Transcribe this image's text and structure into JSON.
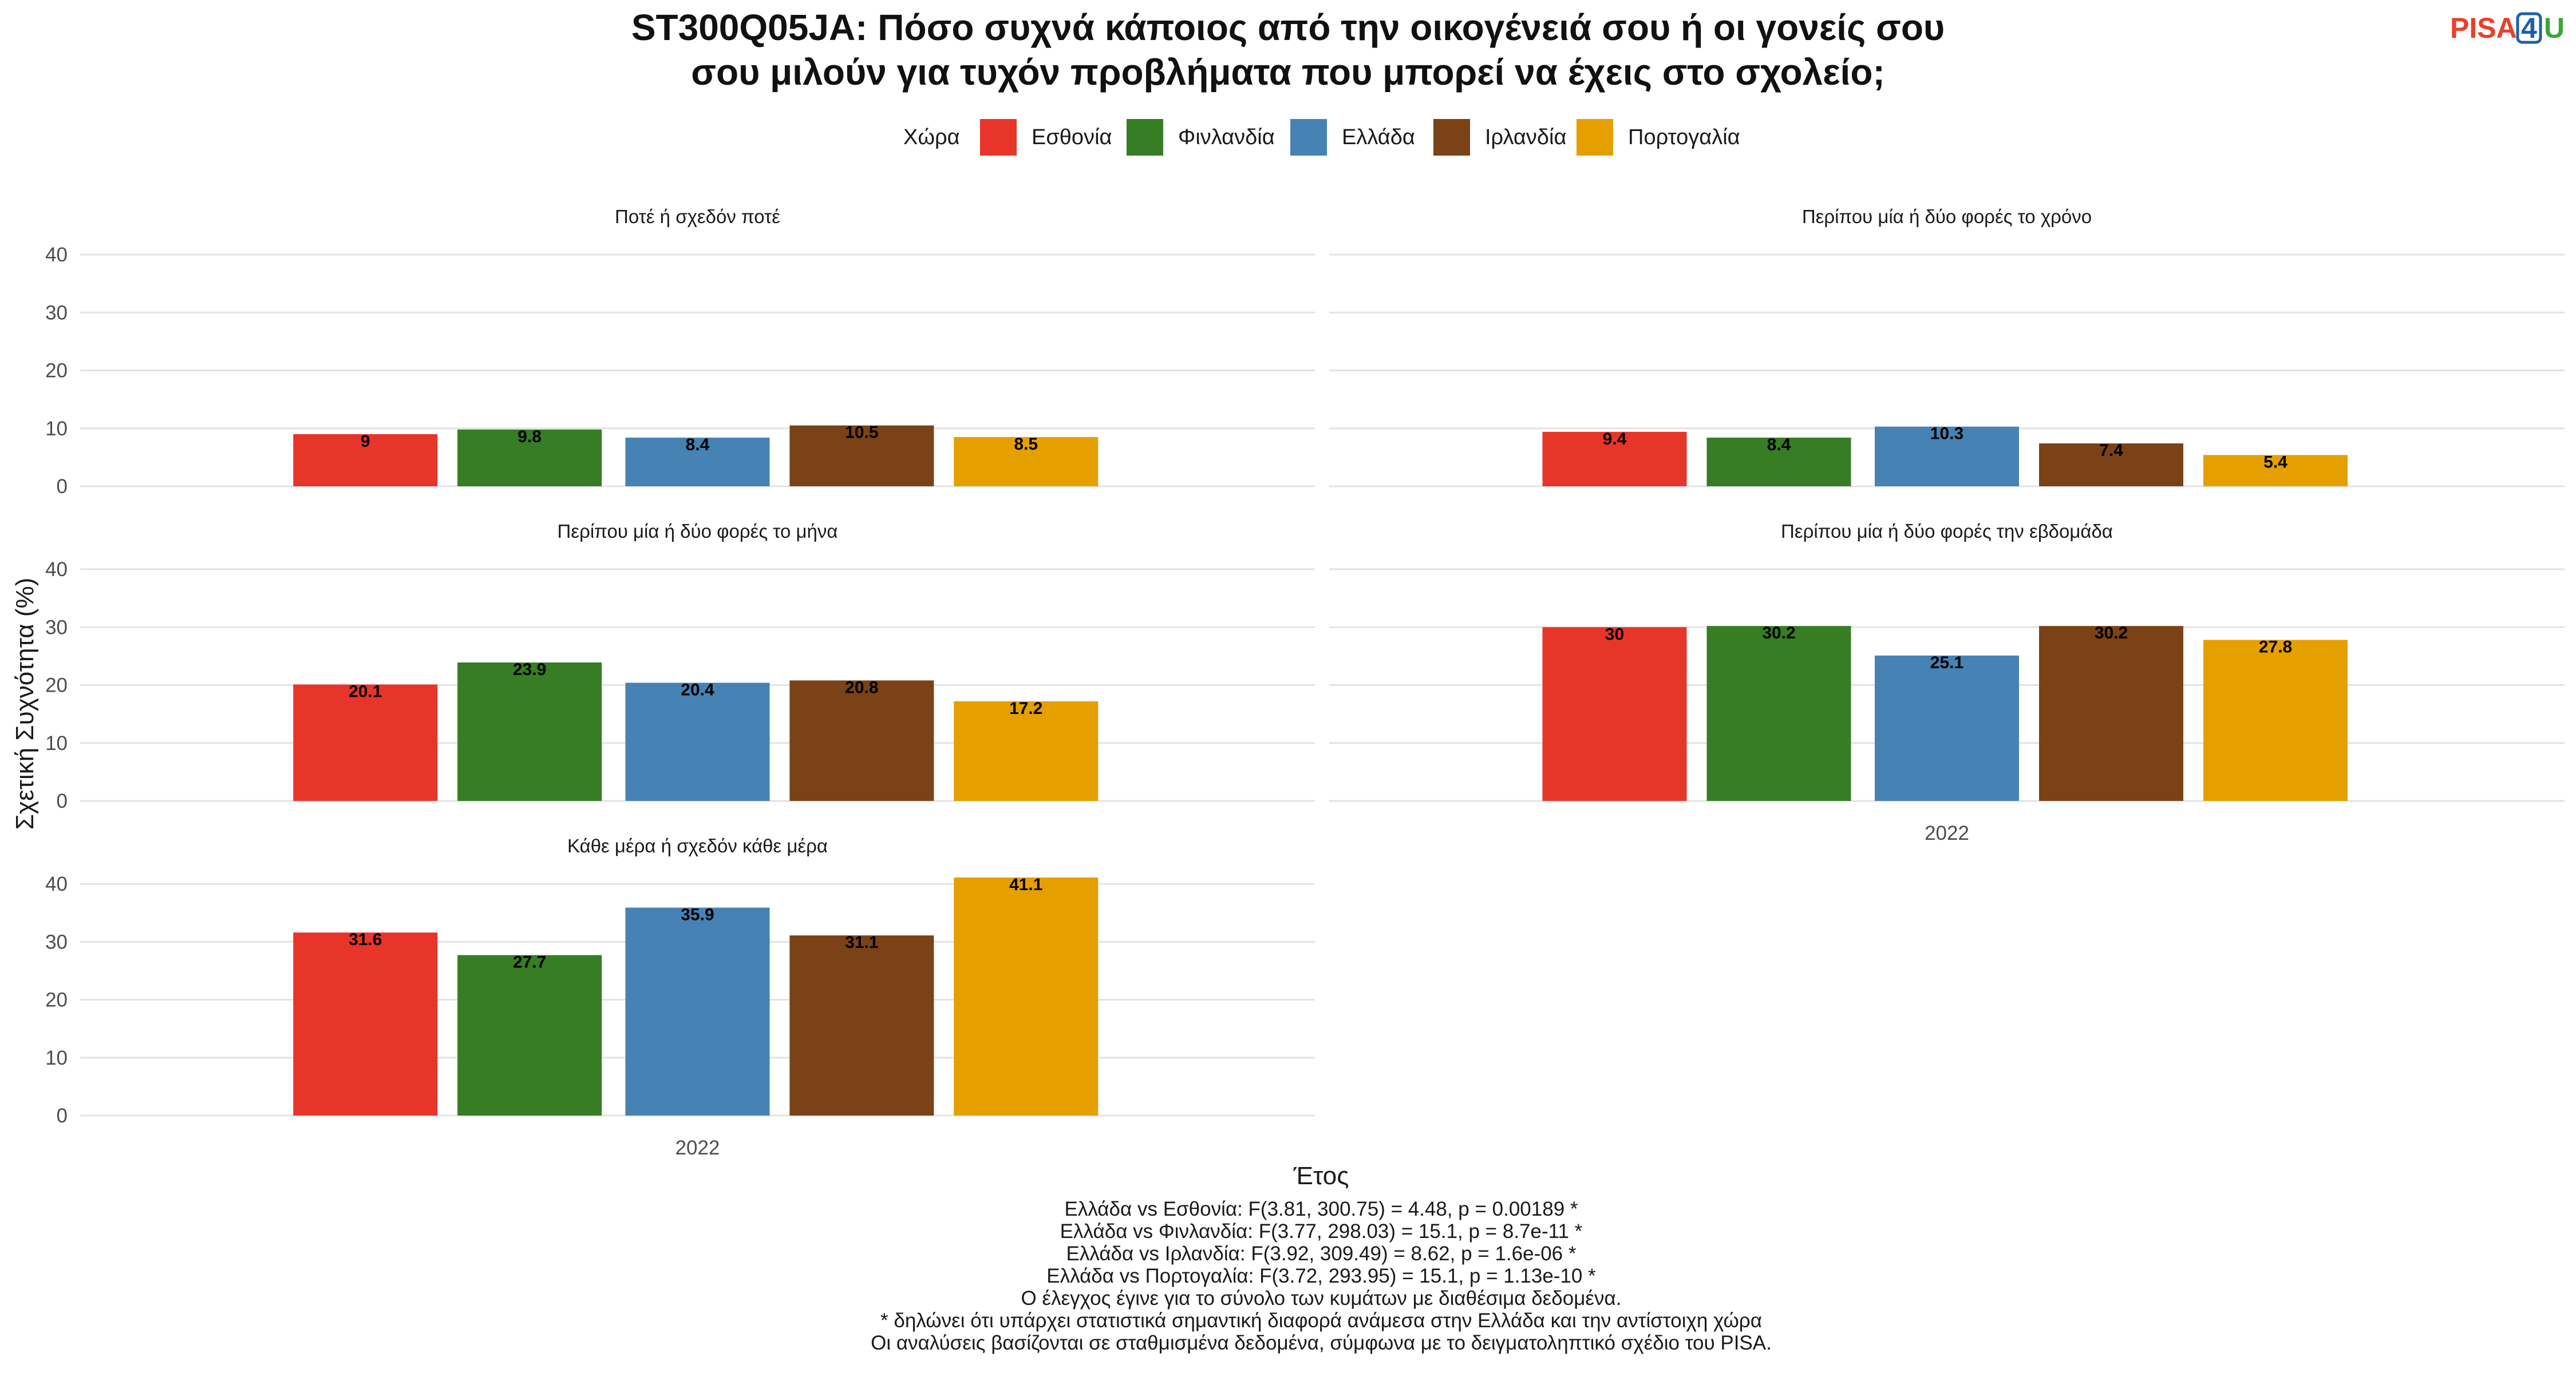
{
  "title_lines": [
    "ST300Q05JA: Πόσο συχνά κάποιος από την οικογένειά σου ή οι γονείς σου",
    "σου μιλούν για τυχόν προβλήματα που μπορεί να έχεις στο σχολείο;"
  ],
  "logo": {
    "part1": "PISA",
    "part2": "4",
    "part3": "U",
    "color1": "#e8402a",
    "color2": "#1f5fa8",
    "color3": "#3aa53a"
  },
  "legend": {
    "title": "Χώρα"
  },
  "colors": {
    "Εσθονία": "#e8352a",
    "Φινλανδία": "#367d24",
    "Ελλάδα": "#4682b4",
    "Ιρλανδία": "#7a4216",
    "Πορτογαλία": "#e5a000"
  },
  "chart_data": {
    "type": "bar",
    "x_category": "2022",
    "xlabel": "Έτος",
    "ylabel": "Σχετική Συχνότητα (%)",
    "ylim": [
      0,
      40
    ],
    "yticks": [
      0,
      10,
      20,
      30,
      40
    ],
    "series_names": [
      "Εσθονία",
      "Φινλανδία",
      "Ελλάδα",
      "Ιρλανδία",
      "Πορτογαλία"
    ],
    "facets": [
      {
        "label": "Ποτέ ή σχεδόν ποτέ",
        "values": [
          9,
          9.8,
          8.4,
          10.5,
          8.5
        ]
      },
      {
        "label": "Περίπου μία ή δύο φορές το χρόνο",
        "values": [
          9.4,
          8.4,
          10.3,
          7.4,
          5.4
        ]
      },
      {
        "label": "Περίπου μία ή δύο φορές το μήνα",
        "values": [
          20.1,
          23.9,
          20.4,
          20.8,
          17.2
        ]
      },
      {
        "label": "Περίπου μία ή δύο φορές την εβδομάδα",
        "values": [
          30,
          30.2,
          25.1,
          30.2,
          27.8
        ]
      },
      {
        "label": "Κάθε μέρα ή σχεδόν κάθε μέρα",
        "values": [
          31.6,
          27.7,
          35.9,
          31.1,
          41.1
        ]
      }
    ]
  },
  "notes": [
    "Ελλάδα vs Εσθονία: F(3.81, 300.75) = 4.48, p = 0.00189 *",
    "Ελλάδα vs Φινλανδία: F(3.77, 298.03) = 15.1, p = 8.7e-11 *",
    "Ελλάδα vs Ιρλανδία: F(3.92, 309.49) = 8.62, p = 1.6e-06 *",
    "Ελλάδα vs Πορτογαλία: F(3.72, 293.95) = 15.1, p = 1.13e-10 *",
    "Ο έλεγχος έγινε για το σύνολο των κυμάτων με διαθέσιμα δεδομένα.",
    "* δηλώνει ότι υπάρχει στατιστικά σημαντική διαφορά ανάμεσα στην Ελλάδα και την αντίστοιχη χώρα",
    "Οι αναλύσεις βασίζονται σε σταθμισμένα δεδομένα, σύμφωνα με το δειγματοληπτικό σχέδιο του PISA."
  ]
}
